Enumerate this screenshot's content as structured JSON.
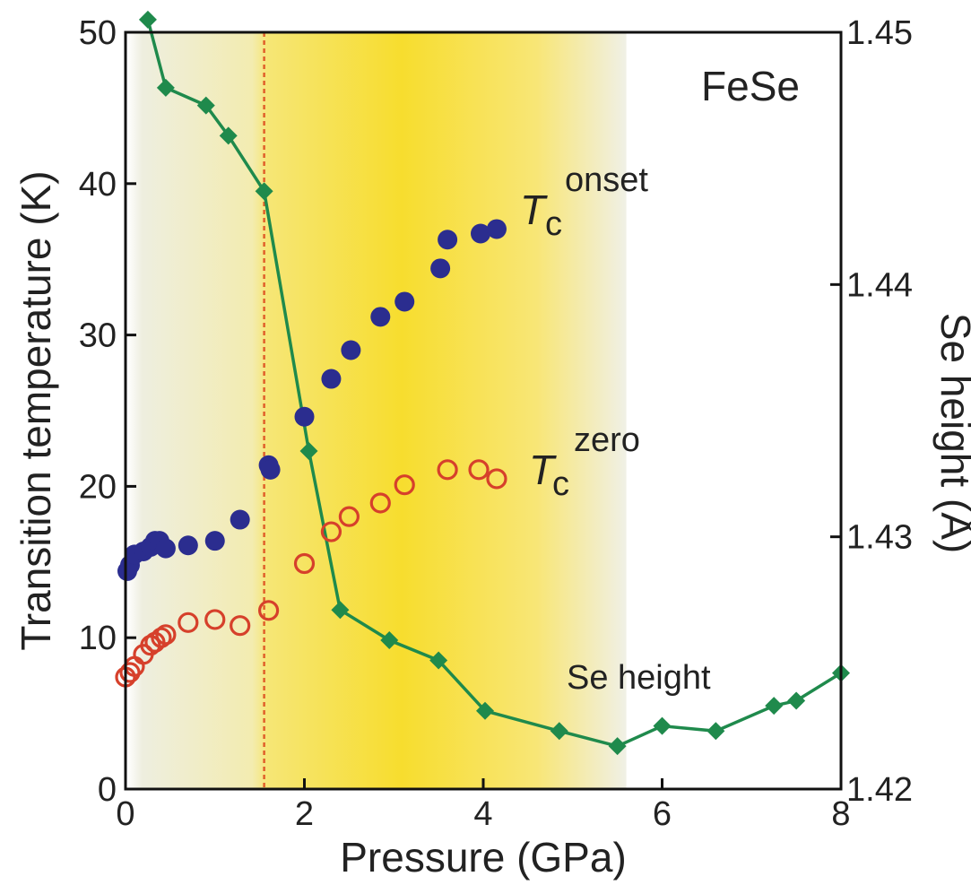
{
  "chart_data": {
    "type": "scatter",
    "annotation": "FeSe",
    "xlabel": "Pressure (GPa)",
    "ylabel_left": "Transition temperature (K)",
    "ylabel_right": "Se height (Å)",
    "xlim": [
      0,
      8
    ],
    "ylim_left": [
      0,
      50
    ],
    "ylim_right": [
      1.42,
      1.45
    ],
    "x_ticks": [
      "0",
      "2",
      "4",
      "6",
      "8"
    ],
    "y_left_ticks": [
      "0",
      "10",
      "20",
      "30",
      "40",
      "50"
    ],
    "y_right_ticks": [
      "1.42",
      "1.43",
      "1.44",
      "1.45"
    ],
    "grid": false,
    "colors": {
      "tc_onset": "#2b2d8f",
      "tc_zero": "#d6402b",
      "se_height": "#1f8a4c",
      "vline": "#e0602a",
      "band": "#f7dd2e"
    },
    "vertical_line_x": 1.55,
    "band_range": [
      0,
      5.6
    ],
    "series": [
      {
        "name": "Tc onset",
        "label_main": "T",
        "label_sub": "c",
        "label_sup": "onset",
        "axis": "left",
        "marker": "filled-circle",
        "x": [
          0.02,
          0.05,
          0.1,
          0.2,
          0.28,
          0.33,
          0.38,
          0.45,
          0.7,
          1.0,
          1.28,
          1.6,
          1.62,
          2.0,
          2.3,
          2.52,
          2.85,
          3.12,
          3.52,
          3.6,
          3.97,
          4.15
        ],
        "y": [
          14.4,
          14.8,
          15.5,
          15.7,
          16.0,
          16.4,
          16.4,
          15.9,
          16.1,
          16.4,
          17.8,
          21.4,
          21.1,
          24.6,
          27.1,
          29.0,
          31.2,
          32.2,
          34.4,
          36.3,
          36.7,
          37.0
        ]
      },
      {
        "name": "Tc zero",
        "label_main": "T",
        "label_sub": "c",
        "label_sup": "zero",
        "axis": "left",
        "marker": "open-circle",
        "x": [
          0.0,
          0.05,
          0.1,
          0.2,
          0.28,
          0.33,
          0.4,
          0.45,
          0.7,
          1.0,
          1.28,
          1.6,
          2.0,
          2.3,
          2.5,
          2.85,
          3.12,
          3.6,
          3.95,
          4.15
        ],
        "y": [
          7.4,
          7.7,
          8.1,
          8.9,
          9.5,
          9.7,
          10.0,
          10.2,
          11.0,
          11.2,
          10.8,
          11.8,
          14.9,
          17.0,
          18.0,
          18.9,
          20.1,
          21.1,
          21.1,
          20.5
        ]
      },
      {
        "name": "Se height",
        "label": "Se height",
        "axis": "right",
        "marker": "filled-diamond",
        "x": [
          0.25,
          0.45,
          0.9,
          1.15,
          1.55,
          2.05,
          2.4,
          2.95,
          3.5,
          4.02,
          4.85,
          5.5,
          6.0,
          6.6,
          7.25,
          7.5,
          8.0
        ],
        "y": [
          1.4505,
          1.4478,
          1.4471,
          1.4459,
          1.4437,
          1.4334,
          1.4271,
          1.4259,
          1.4251,
          1.4231,
          1.4223,
          1.4217,
          1.4225,
          1.4223,
          1.4233,
          1.4235,
          1.4246
        ]
      }
    ]
  }
}
